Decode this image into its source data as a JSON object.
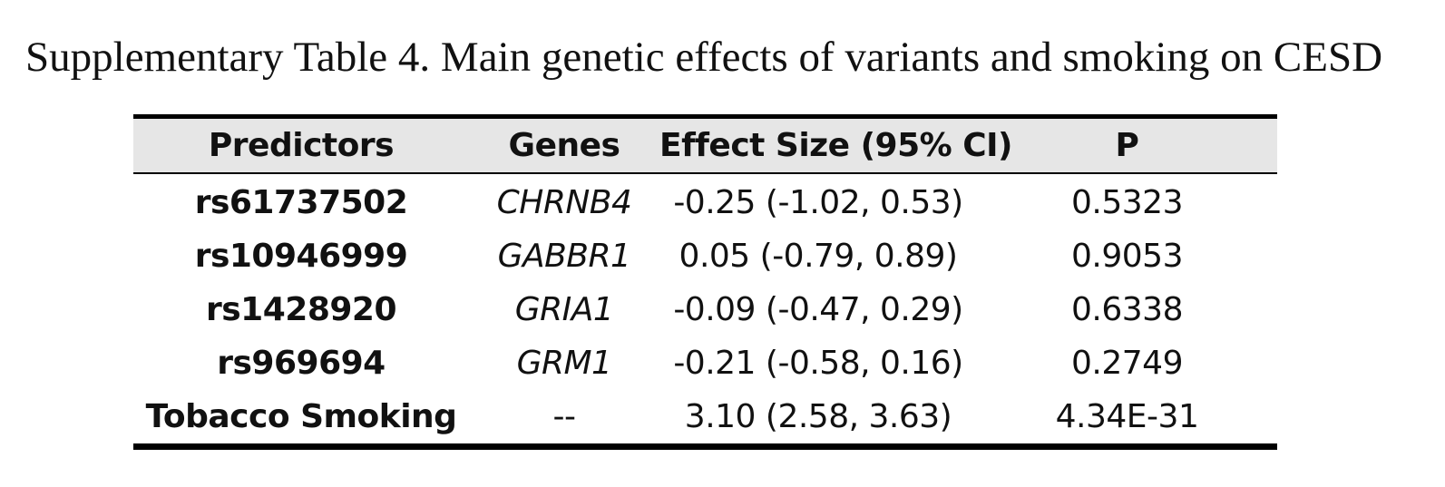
{
  "caption": "Supplementary Table 4. Main genetic effects of variants and smoking on CESD",
  "table": {
    "headers": {
      "predictors": "Predictors",
      "genes": "Genes",
      "effect_size": "Effect Size (95% CI)",
      "p": "P"
    },
    "rows": [
      {
        "predictor": "rs61737502",
        "gene": "CHRNB4",
        "effect_size": "-0.25 (-1.02, 0.53)",
        "p": "0.5323"
      },
      {
        "predictor": "rs10946999",
        "gene": "GABBR1",
        "effect_size": "0.05 (-0.79, 0.89)",
        "p": "0.9053"
      },
      {
        "predictor": "rs1428920",
        "gene": "GRIA1",
        "effect_size": "-0.09 (-0.47, 0.29)",
        "p": "0.6338"
      },
      {
        "predictor": "rs969694",
        "gene": "GRM1",
        "effect_size": "-0.21 (-0.58, 0.16)",
        "p": "0.2749"
      },
      {
        "predictor": "Tobacco Smoking",
        "gene": "--",
        "effect_size": "3.10 (2.58, 3.63)",
        "p": "4.34E-31"
      }
    ]
  }
}
